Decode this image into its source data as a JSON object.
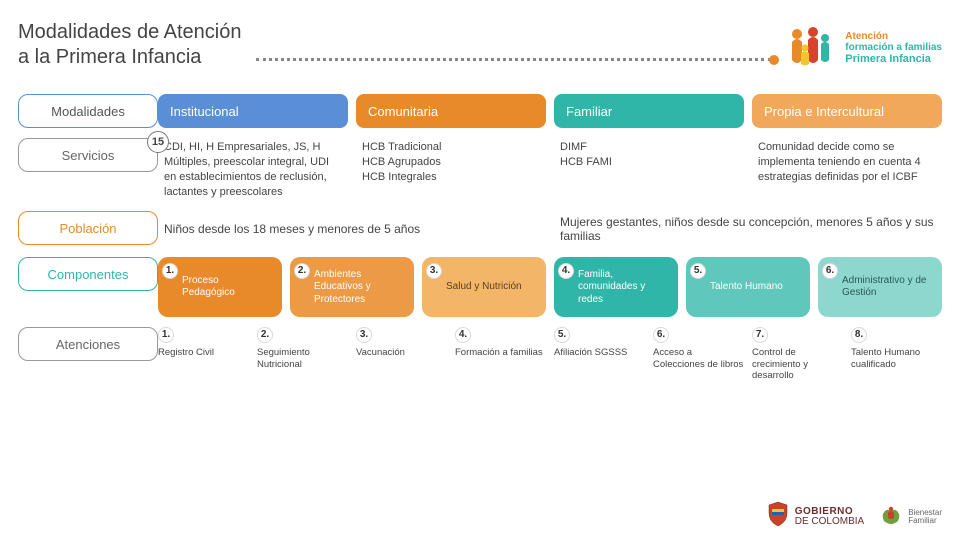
{
  "header": {
    "title_line1": "Modalidades de Atención",
    "title_line2": "a la Primera Infancia",
    "logo_line1": "Atención",
    "logo_line2": "formación a familias",
    "logo_line3": "Primera Infancia"
  },
  "rows": {
    "modalidades": {
      "label": "Modalidades",
      "cells": [
        "Institucional",
        "Comunitaria",
        "Familiar",
        "Propia e Intercultural"
      ],
      "cell_colors": [
        "#5a8fd8",
        "#e88a2a",
        "#2fb6a8",
        "#f2a85a"
      ]
    },
    "servicios": {
      "label": "Servicios",
      "badge": "15",
      "cells": [
        "CDI, HI, H Empresariales, JS, H Múltiples, preescolar integral, UDI en establecimientos de reclusión, lactantes y preescolares",
        "HCB Tradicional\nHCB Agrupados\nHCB Integrales",
        "DIMF\nHCB FAMI",
        "Comunidad decide como se implementa teniendo en cuenta 4 estrategias definidas por el ICBF"
      ]
    },
    "poblacion": {
      "label": "Población",
      "cells": [
        "Niños desde los 18 meses y menores de 5 años",
        "Mujeres gestantes, niños desde su concepción, menores 5 años y sus familias"
      ]
    },
    "componentes": {
      "label": "Componentes",
      "items": [
        {
          "n": "1.",
          "text": "Proceso Pedagógico",
          "color": "#e88a2a",
          "textColor": "#fff"
        },
        {
          "n": "2.",
          "text": "Ambientes Educativos y Protectores",
          "color": "#ec9a45",
          "textColor": "#fff"
        },
        {
          "n": "3.",
          "text": "Salud y Nutrición",
          "color": "#f3b668",
          "textColor": "#5a4020"
        },
        {
          "n": "4.",
          "text": "Familia, comunidades y redes",
          "color": "#2fb6a8",
          "textColor": "#fff"
        },
        {
          "n": "5.",
          "text": "Talento Humano",
          "color": "#5fc7bb",
          "textColor": "#fff"
        },
        {
          "n": "6.",
          "text": "Administrativo y de Gestión",
          "color": "#8ed7cf",
          "textColor": "#2a5a54"
        }
      ]
    },
    "atenciones": {
      "label": "Atenciones",
      "items": [
        {
          "n": "1.",
          "text": "Registro Civil"
        },
        {
          "n": "2.",
          "text": "Seguimiento Nutricional"
        },
        {
          "n": "3.",
          "text": "Vacunación"
        },
        {
          "n": "4.",
          "text": "Formación a familias"
        },
        {
          "n": "5.",
          "text": "Afiliación SGSSS"
        },
        {
          "n": "6.",
          "text": "Acceso a Colecciones de libros"
        },
        {
          "n": "7.",
          "text": "Control de crecimiento y desarrollo"
        },
        {
          "n": "8.",
          "text": "Talento Humano cualificado"
        }
      ]
    }
  },
  "footer": {
    "gobierno_l1": "GOBIERNO",
    "gobierno_l2": "DE COLOMBIA",
    "bienestar_l1": "Bienestar",
    "bienestar_l2": "Familiar"
  },
  "colors": {
    "orange": "#e88a2a",
    "teal": "#2fb6a8",
    "blue": "#5a8fd8",
    "ltorange": "#f2a85a"
  }
}
